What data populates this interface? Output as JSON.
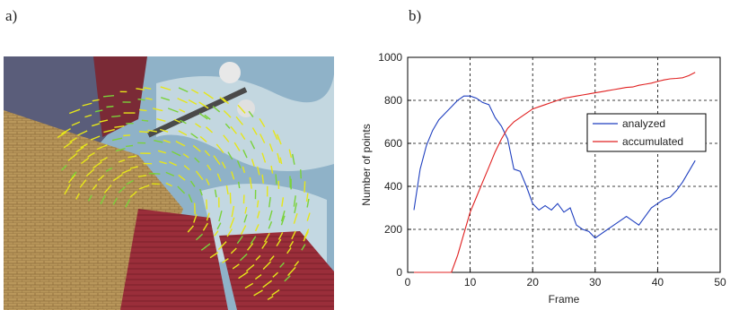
{
  "panels": {
    "a_label": "a)",
    "b_label": "b)"
  },
  "image": {
    "description_icon": "optical-flow-scene"
  },
  "chart_data": {
    "type": "line",
    "xlabel": "Frame",
    "ylabel": "Number of points",
    "xlim": [
      0,
      50
    ],
    "ylim": [
      0,
      1000
    ],
    "xticks": [
      0,
      10,
      20,
      30,
      40,
      50
    ],
    "yticks": [
      0,
      200,
      400,
      600,
      800,
      1000
    ],
    "grid": true,
    "legend_position": "right-middle",
    "series": [
      {
        "name": "analyzed",
        "color": "#1f3fbf",
        "x": [
          1,
          2,
          3,
          4,
          5,
          6,
          7,
          8,
          9,
          10,
          11,
          12,
          13,
          14,
          15,
          16,
          17,
          18,
          19,
          20,
          21,
          22,
          23,
          24,
          25,
          26,
          27,
          28,
          29,
          30,
          31,
          32,
          33,
          34,
          35,
          36,
          37,
          38,
          39,
          40,
          41,
          42,
          43,
          44,
          45,
          46
        ],
        "y": [
          290,
          480,
          590,
          660,
          710,
          740,
          770,
          800,
          820,
          820,
          810,
          790,
          780,
          720,
          680,
          620,
          480,
          470,
          400,
          320,
          290,
          310,
          290,
          320,
          280,
          300,
          220,
          200,
          190,
          160,
          180,
          200,
          220,
          240,
          260,
          240,
          220,
          260,
          300,
          320,
          340,
          350,
          380,
          420,
          470,
          520
        ]
      },
      {
        "name": "accumulated",
        "color": "#e02020",
        "x": [
          1,
          2,
          3,
          4,
          5,
          6,
          7,
          8,
          9,
          10,
          11,
          12,
          13,
          14,
          15,
          16,
          17,
          18,
          19,
          20,
          21,
          22,
          23,
          24,
          25,
          26,
          27,
          28,
          29,
          30,
          31,
          32,
          33,
          34,
          35,
          36,
          37,
          38,
          39,
          40,
          41,
          42,
          43,
          44,
          45,
          46
        ],
        "y": [
          0,
          0,
          0,
          0,
          0,
          0,
          0,
          80,
          180,
          280,
          350,
          420,
          490,
          560,
          620,
          670,
          700,
          720,
          740,
          760,
          770,
          780,
          790,
          800,
          810,
          815,
          820,
          825,
          830,
          835,
          840,
          845,
          850,
          855,
          860,
          862,
          870,
          875,
          880,
          888,
          895,
          900,
          902,
          905,
          915,
          930
        ]
      }
    ]
  }
}
